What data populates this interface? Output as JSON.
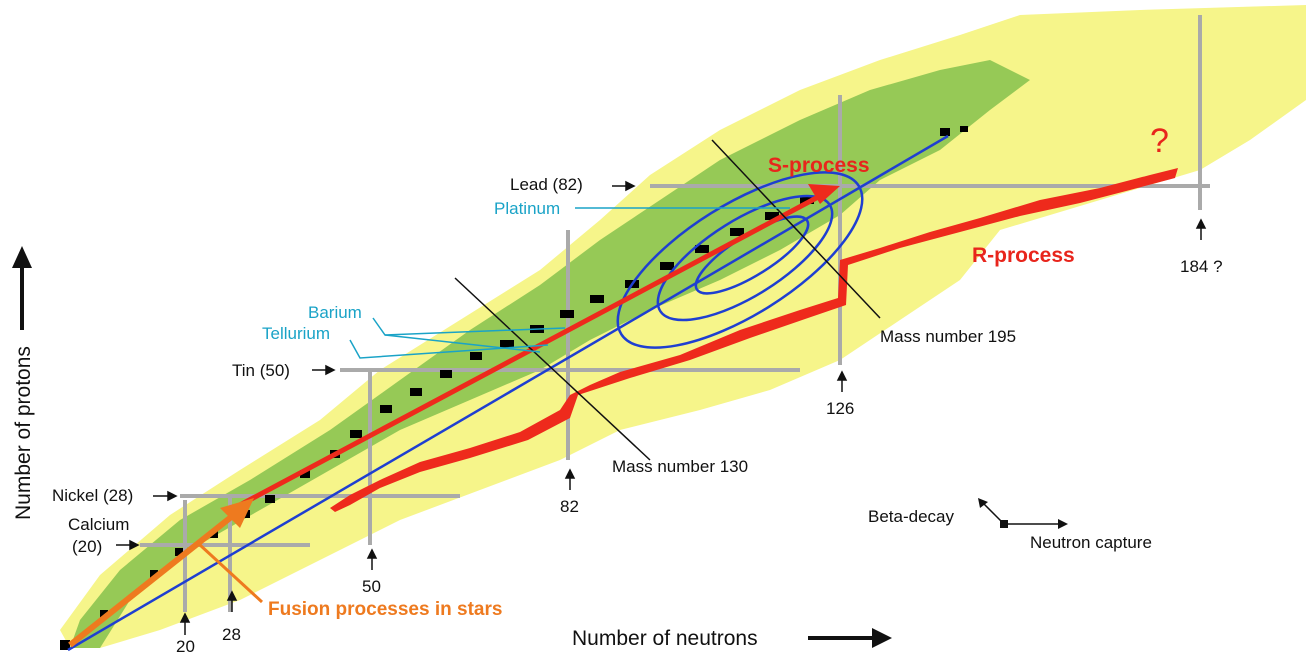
{
  "axes": {
    "x_label": "Number of neutrons",
    "y_label": "Number of protons"
  },
  "magic_proton_labels": {
    "calcium_name": "Calcium",
    "calcium_num": "(20)",
    "nickel": "Nickel (28)",
    "tin": "Tin (50)",
    "lead": "Lead (82)"
  },
  "magic_neutron_labels": [
    "20",
    "28",
    "50",
    "82",
    "126",
    "184 ?"
  ],
  "element_labels": {
    "platinum": "Platinum",
    "barium": "Barium",
    "tellurium": "Tellurium"
  },
  "process_labels": {
    "s_process": "S-process",
    "r_process": "R-process",
    "fusion": "Fusion processes in stars",
    "question": "?"
  },
  "mass_labels": {
    "m130": "Mass number 130",
    "m195": "Mass number 195"
  },
  "legend": {
    "beta_decay": "Beta-decay",
    "neutron_capture": "Neutron capture"
  },
  "colors": {
    "unknown_region": "#f6f58a",
    "known_region": "#96c956",
    "stable": "#000000",
    "r_process": "#ee2a1c",
    "fusion": "#ee7a1f",
    "s_process_path": "#1f3fd1",
    "magic_lines": "#aaaaaa",
    "element_text": "#1aa3c7"
  }
}
